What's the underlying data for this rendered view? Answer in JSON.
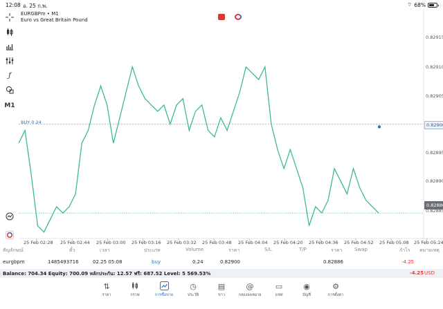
{
  "status_bar": {
    "time": "12:08",
    "date": "อ. 25 ก.พ.",
    "battery": "68%"
  },
  "chart": {
    "symbol": "EURGBPm • M1",
    "description": "Euro vs Great Britain Pound",
    "buy_label": "BUY 0.24",
    "price_labels": [
      "0.82915",
      "0.82910",
      "0.82905",
      "0.82900",
      "0.82895",
      "0.82890",
      "0.82886",
      "0.82885"
    ],
    "buy_price_tag": "0.82900",
    "bid_price_tag": "0.82886",
    "time_labels": [
      "25 Feb 02:28",
      "25 Feb 02:44",
      "25 Feb 03:00",
      "25 Feb 03:16",
      "25 Feb 03:32",
      "25 Feb 03:48",
      "25 Feb 04:04",
      "25 Feb 04:20",
      "25 Feb 04:36",
      "25 Feb 04:52",
      "25 Feb 05:08",
      "25 Feb 05:24"
    ],
    "left_tools": [
      "crosshair-icon",
      "candles-icon",
      "bars-icon",
      "indicators-icon",
      "function-icon",
      "objects-icon"
    ],
    "timeframe": "M1",
    "line_color": "#3dba8a",
    "buy_line_color": "#8aa9cf",
    "bid_line_color": "#3dba8a"
  },
  "table": {
    "headers": [
      "สัญลักษณ์",
      "ตั๋ว",
      "เวลา",
      "ประเภท",
      "Volume",
      "ราคา",
      "S/L",
      "T/P",
      "ราคา",
      "Swap",
      "กำไร",
      "หมายเหตุ"
    ],
    "row": {
      "symbol": "eurgbpm",
      "ticket": "1485493716",
      "time": "02.25 05:08",
      "type": "buy",
      "volume": "0.24",
      "price": "0.82900",
      "current_price": "0.82886",
      "profit": "-4.25"
    }
  },
  "balance": {
    "text": "Balance: 704.34 Equity: 700.09 หลักประกัน: 12.57 ฟรี: 687.52 Level: 5 569.53%",
    "total": "-4.25",
    "currency": "USD"
  },
  "nav": [
    {
      "label": "ราคา",
      "icon": "quotes-icon"
    },
    {
      "label": "กราฟ",
      "icon": "chart-icon"
    },
    {
      "label": "การซื้อขาย",
      "icon": "trade-icon"
    },
    {
      "label": "ประวัติ",
      "icon": "history-icon"
    },
    {
      "label": "ข่าว",
      "icon": "news-icon"
    },
    {
      "label": "กล่องจดหมาย",
      "icon": "mailbox-icon"
    },
    {
      "label": "แชท",
      "icon": "chat-icon"
    },
    {
      "label": "บัญชี",
      "icon": "account-icon"
    },
    {
      "label": "การตั้งค่า",
      "icon": "settings-icon"
    }
  ],
  "chart_data": {
    "type": "line",
    "x_labels": [
      "25 Feb 02:28",
      "25 Feb 02:44",
      "25 Feb 03:00",
      "25 Feb 03:16",
      "25 Feb 03:32",
      "25 Feb 03:48",
      "25 Feb 04:04",
      "25 Feb 04:20",
      "25 Feb 04:36",
      "25 Feb 04:52",
      "25 Feb 05:08",
      "25 Feb 05:24"
    ],
    "ylim": [
      0.82882,
      0.82918
    ],
    "series": [
      {
        "values": [
          0.82897,
          0.82899,
          0.82892,
          0.82884,
          0.82883,
          0.82885,
          0.82887,
          0.82886,
          0.82887,
          0.82889,
          0.82897,
          0.82899,
          0.82903,
          0.82906,
          0.82903,
          0.82897,
          0.82901,
          0.82905,
          0.82909,
          0.82906,
          0.82904,
          0.82903,
          0.82902,
          0.82903,
          0.829,
          0.82903,
          0.82904,
          0.82899,
          0.82902,
          0.82903,
          0.82899,
          0.82898,
          0.82901,
          0.82899,
          0.82902,
          0.82905,
          0.82909,
          0.82908,
          0.82907,
          0.82909,
          0.829,
          0.82896,
          0.82893,
          0.82896,
          0.82893,
          0.8289,
          0.82884,
          0.82887,
          0.82886,
          0.82888,
          0.82893,
          0.82891,
          0.82889,
          0.82893,
          0.8289,
          0.82888,
          0.82887,
          0.82886
        ]
      }
    ],
    "buy_level": 0.829,
    "bid_level": 0.82886,
    "grid": false
  }
}
